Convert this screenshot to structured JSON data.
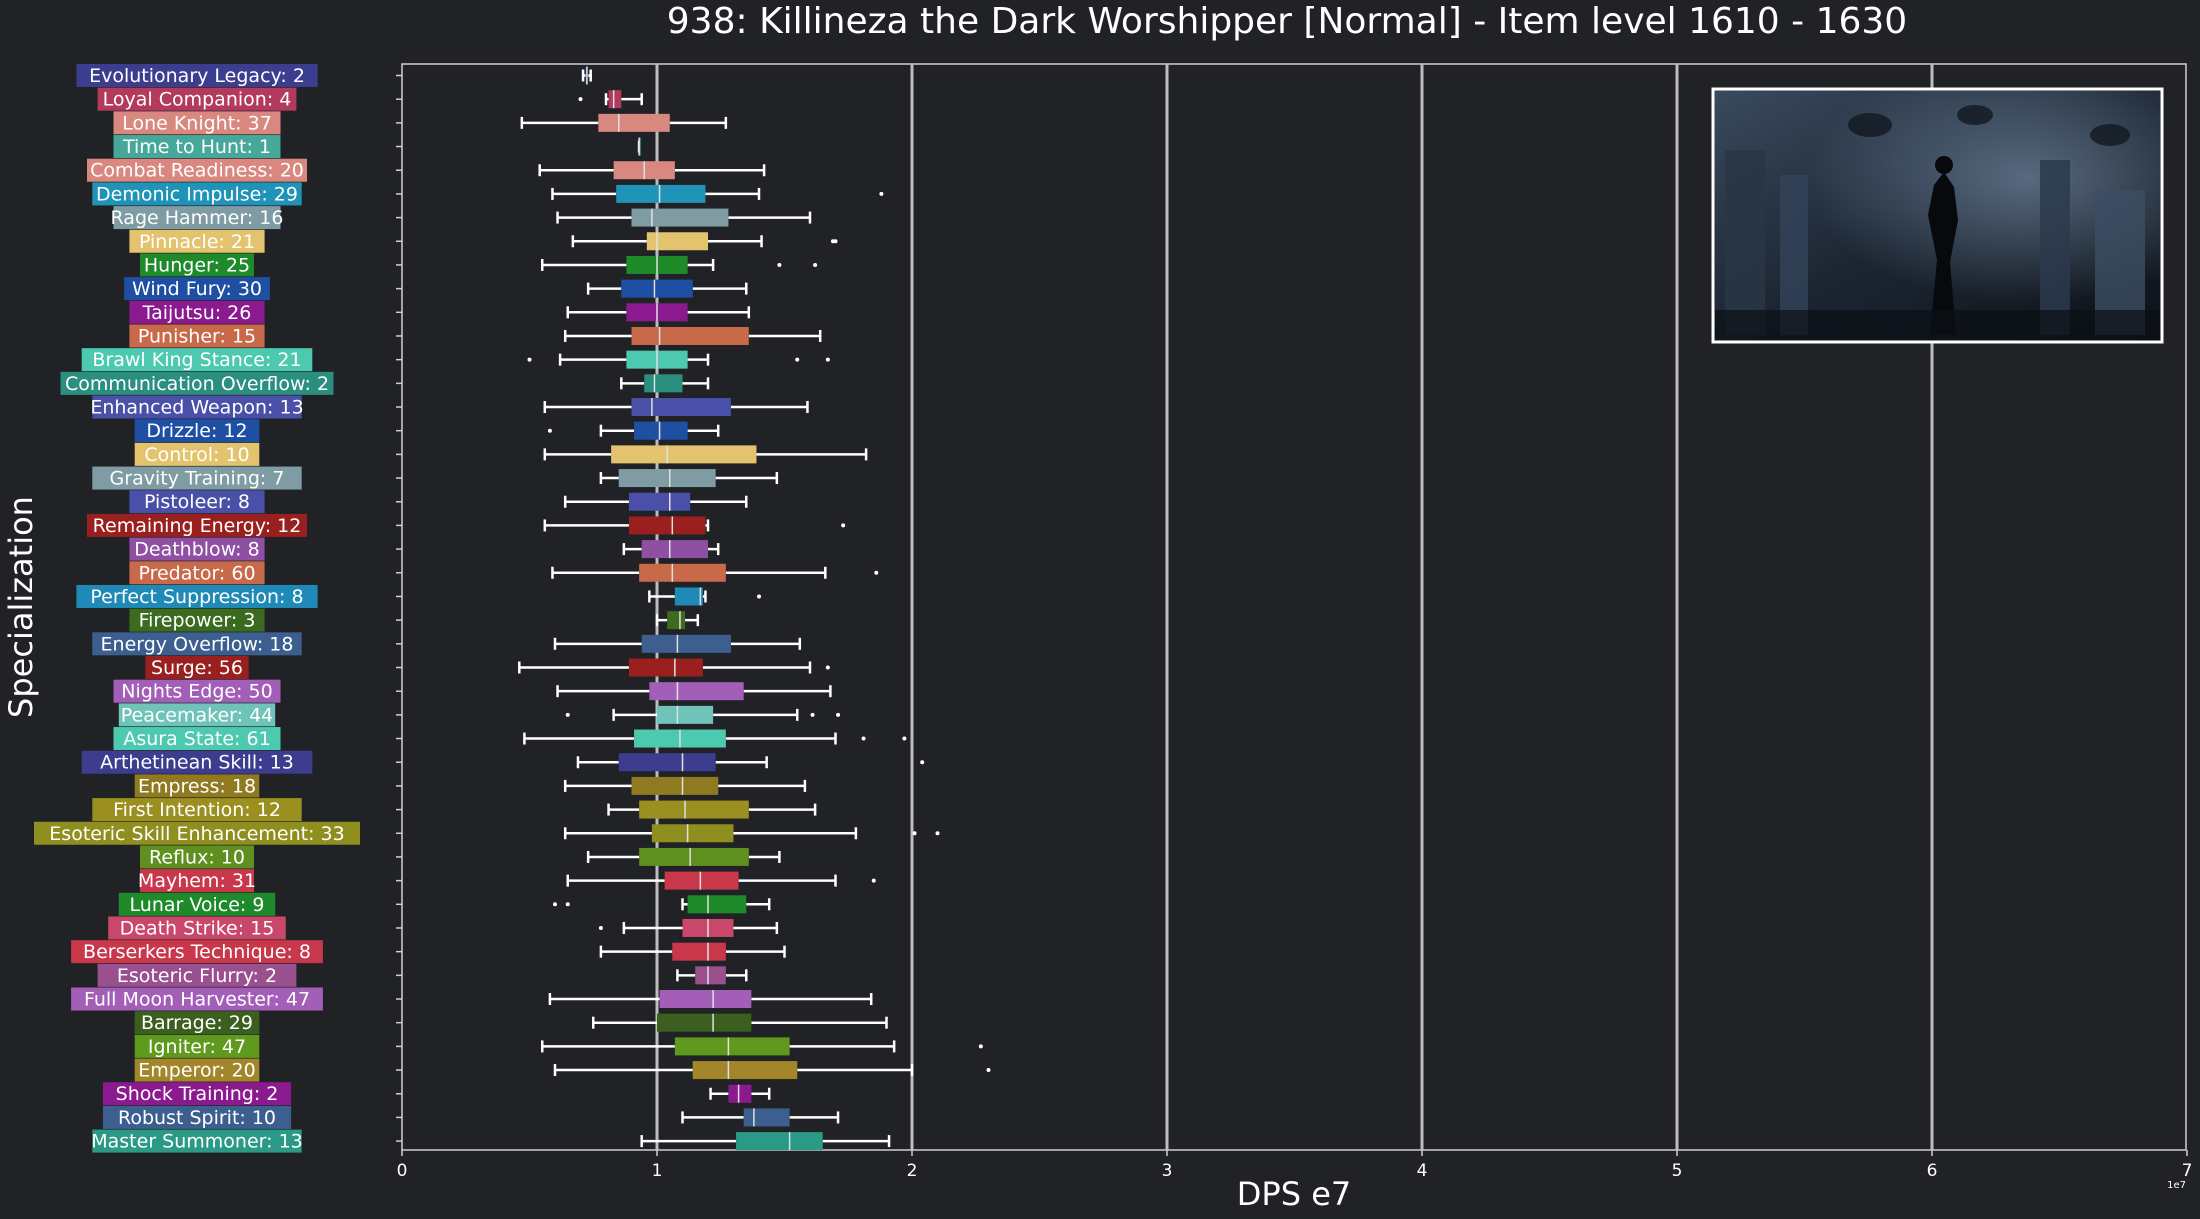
{
  "chart_data": {
    "type": "box",
    "title": "938: Killineza the Dark Worshipper [Normal] - Item level 1610 - 1630",
    "xlabel": "DPS e7",
    "ylabel": "Specialization",
    "offset_text": "1e7",
    "xlim": [
      0,
      7
    ],
    "xticks": [
      "0",
      "1",
      "2",
      "3",
      "4",
      "5",
      "6",
      "7"
    ],
    "grid": "vertical",
    "inset": "boss artwork (dark gothic scene)",
    "categories": [
      {
        "label": "Evolutionary Legacy: 2",
        "color": "#3b3d8f",
        "whislo": 0.71,
        "q1": 0.72,
        "med": 0.725,
        "q3": 0.73,
        "whishi": 0.74,
        "fliers": []
      },
      {
        "label": "Loyal Companion: 4",
        "color": "#b33a5c",
        "whislo": 0.8,
        "q1": 0.81,
        "med": 0.83,
        "q3": 0.86,
        "whishi": 0.94,
        "fliers": [
          0.7
        ]
      },
      {
        "label": "Lone Knight: 37",
        "color": "#d98880",
        "whislo": 0.47,
        "q1": 0.77,
        "med": 0.85,
        "q3": 1.05,
        "whishi": 1.27,
        "fliers": []
      },
      {
        "label": "Time to Hunt: 1",
        "color": "#45a89a",
        "whislo": 0.93,
        "q1": 0.93,
        "med": 0.93,
        "q3": 0.93,
        "whishi": 0.93,
        "fliers": []
      },
      {
        "label": "Combat Readiness: 20",
        "color": "#d98880",
        "whislo": 0.54,
        "q1": 0.83,
        "med": 0.95,
        "q3": 1.07,
        "whishi": 1.42,
        "fliers": []
      },
      {
        "label": "Demonic Impulse: 29",
        "color": "#1f93b8",
        "whislo": 0.59,
        "q1": 0.84,
        "med": 1.01,
        "q3": 1.19,
        "whishi": 1.4,
        "fliers": [
          1.88
        ]
      },
      {
        "label": "Rage Hammer: 16",
        "color": "#7f9ba3",
        "whislo": 0.61,
        "q1": 0.9,
        "med": 0.98,
        "q3": 1.28,
        "whishi": 1.6,
        "fliers": []
      },
      {
        "label": "Pinnacle: 21",
        "color": "#e3c36e",
        "whislo": 0.67,
        "q1": 0.96,
        "med": 1.0,
        "q3": 1.2,
        "whishi": 1.41,
        "fliers": [
          1.69,
          1.7
        ]
      },
      {
        "label": "Hunger: 25",
        "color": "#1e8a2a",
        "whislo": 0.55,
        "q1": 0.88,
        "med": 1.0,
        "q3": 1.12,
        "whishi": 1.22,
        "fliers": [
          1.48,
          1.62
        ]
      },
      {
        "label": "Wind Fury: 30",
        "color": "#1f4fa3",
        "whislo": 0.73,
        "q1": 0.86,
        "med": 0.99,
        "q3": 1.14,
        "whishi": 1.35,
        "fliers": []
      },
      {
        "label": "Taijutsu: 26",
        "color": "#8b1a8f",
        "whislo": 0.65,
        "q1": 0.88,
        "med": 1.0,
        "q3": 1.12,
        "whishi": 1.36,
        "fliers": []
      },
      {
        "label": "Punisher: 15",
        "color": "#c8694a",
        "whislo": 0.64,
        "q1": 0.9,
        "med": 1.01,
        "q3": 1.36,
        "whishi": 1.64,
        "fliers": []
      },
      {
        "label": "Brawl King Stance: 21",
        "color": "#4dc9b0",
        "whislo": 0.62,
        "q1": 0.88,
        "med": 1.0,
        "q3": 1.12,
        "whishi": 1.2,
        "fliers": [
          0.5,
          1.55,
          1.67
        ]
      },
      {
        "label": "Communication Overflow: 2",
        "color": "#2a8f7e",
        "whislo": 0.86,
        "q1": 0.95,
        "med": 0.99,
        "q3": 1.1,
        "whishi": 1.2,
        "fliers": []
      },
      {
        "label": "Enhanced Weapon: 13",
        "color": "#4a4fa8",
        "whislo": 0.56,
        "q1": 0.9,
        "med": 0.98,
        "q3": 1.29,
        "whishi": 1.59,
        "fliers": []
      },
      {
        "label": "Drizzle: 12",
        "color": "#1f4fa3",
        "whislo": 0.78,
        "q1": 0.91,
        "med": 1.01,
        "q3": 1.12,
        "whishi": 1.24,
        "fliers": [
          0.58
        ]
      },
      {
        "label": "Control: 10",
        "color": "#e3c36e",
        "whislo": 0.56,
        "q1": 0.82,
        "med": 1.04,
        "q3": 1.39,
        "whishi": 1.82,
        "fliers": []
      },
      {
        "label": "Gravity Training: 7",
        "color": "#7f9ba3",
        "whislo": 0.78,
        "q1": 0.85,
        "med": 1.05,
        "q3": 1.23,
        "whishi": 1.47,
        "fliers": []
      },
      {
        "label": "Pistoleer: 8",
        "color": "#4a4fa8",
        "whislo": 0.64,
        "q1": 0.89,
        "med": 1.05,
        "q3": 1.13,
        "whishi": 1.35,
        "fliers": []
      },
      {
        "label": "Remaining Energy: 12",
        "color": "#9a1f1f",
        "whislo": 0.56,
        "q1": 0.89,
        "med": 1.06,
        "q3": 1.19,
        "whishi": 1.2,
        "fliers": [
          1.73
        ]
      },
      {
        "label": "Deathblow: 8",
        "color": "#8f4fa3",
        "whislo": 0.87,
        "q1": 0.94,
        "med": 1.05,
        "q3": 1.2,
        "whishi": 1.24,
        "fliers": []
      },
      {
        "label": "Predator: 60",
        "color": "#c8694a",
        "whislo": 0.59,
        "q1": 0.93,
        "med": 1.06,
        "q3": 1.27,
        "whishi": 1.66,
        "fliers": [
          1.86
        ]
      },
      {
        "label": "Perfect Suppression: 8",
        "color": "#1f8ab8",
        "whislo": 0.97,
        "q1": 1.07,
        "med": 1.17,
        "q3": 1.18,
        "whishi": 1.19,
        "fliers": [
          1.4
        ]
      },
      {
        "label": "Firepower: 3",
        "color": "#3b6b1f",
        "whislo": 1.0,
        "q1": 1.04,
        "med": 1.09,
        "q3": 1.11,
        "whishi": 1.16,
        "fliers": []
      },
      {
        "label": "Energy Overflow: 18",
        "color": "#3d5f8f",
        "whislo": 0.6,
        "q1": 0.94,
        "med": 1.08,
        "q3": 1.29,
        "whishi": 1.56,
        "fliers": []
      },
      {
        "label": "Surge: 56",
        "color": "#9a1f1f",
        "whislo": 0.46,
        "q1": 0.89,
        "med": 1.07,
        "q3": 1.18,
        "whishi": 1.6,
        "fliers": [
          1.67
        ]
      },
      {
        "label": "Nights Edge: 50",
        "color": "#a35fb8",
        "whislo": 0.61,
        "q1": 0.97,
        "med": 1.08,
        "q3": 1.34,
        "whishi": 1.68,
        "fliers": []
      },
      {
        "label": "Peacemaker: 44",
        "color": "#6fc3b8",
        "whislo": 0.83,
        "q1": 1.0,
        "med": 1.08,
        "q3": 1.22,
        "whishi": 1.55,
        "fliers": [
          0.65,
          1.61,
          1.71
        ]
      },
      {
        "label": "Asura State: 61",
        "color": "#4dc9b0",
        "whislo": 0.48,
        "q1": 0.91,
        "med": 1.09,
        "q3": 1.27,
        "whishi": 1.7,
        "fliers": [
          1.81,
          1.97
        ]
      },
      {
        "label": "Arthetinean Skill: 13",
        "color": "#3d3d8f",
        "whislo": 0.69,
        "q1": 0.85,
        "med": 1.1,
        "q3": 1.23,
        "whishi": 1.43,
        "fliers": [
          2.04
        ]
      },
      {
        "label": "Empress: 18",
        "color": "#8f7a1f",
        "whislo": 0.64,
        "q1": 0.9,
        "med": 1.1,
        "q3": 1.24,
        "whishi": 1.58,
        "fliers": []
      },
      {
        "label": "First Intention: 12",
        "color": "#9a8f1f",
        "whislo": 0.81,
        "q1": 0.93,
        "med": 1.11,
        "q3": 1.36,
        "whishi": 1.62,
        "fliers": []
      },
      {
        "label": "Esoteric Skill Enhancement: 33",
        "color": "#8f8f1f",
        "whislo": 0.64,
        "q1": 0.98,
        "med": 1.12,
        "q3": 1.3,
        "whishi": 1.78,
        "fliers": [
          2.01,
          2.1
        ]
      },
      {
        "label": "Reflux: 10",
        "color": "#5f8f1f",
        "whislo": 0.73,
        "q1": 0.93,
        "med": 1.13,
        "q3": 1.36,
        "whishi": 1.48,
        "fliers": []
      },
      {
        "label": "Mayhem: 31",
        "color": "#c8374a",
        "whislo": 0.65,
        "q1": 1.03,
        "med": 1.17,
        "q3": 1.32,
        "whishi": 1.7,
        "fliers": [
          1.85
        ]
      },
      {
        "label": "Lunar Voice: 9",
        "color": "#1e8a2a",
        "whislo": 1.1,
        "q1": 1.12,
        "med": 1.2,
        "q3": 1.35,
        "whishi": 1.44,
        "fliers": [
          0.6,
          0.65
        ]
      },
      {
        "label": "Death Strike: 15",
        "color": "#c8476a",
        "whislo": 0.87,
        "q1": 1.1,
        "med": 1.2,
        "q3": 1.3,
        "whishi": 1.47,
        "fliers": [
          0.78
        ]
      },
      {
        "label": "Berserkers Technique: 8",
        "color": "#c8374a",
        "whislo": 0.78,
        "q1": 1.06,
        "med": 1.2,
        "q3": 1.27,
        "whishi": 1.5,
        "fliers": []
      },
      {
        "label": "Esoteric Flurry: 2",
        "color": "#9a4f8f",
        "whislo": 1.08,
        "q1": 1.15,
        "med": 1.2,
        "q3": 1.27,
        "whishi": 1.35,
        "fliers": []
      },
      {
        "label": "Full Moon Harvester: 47",
        "color": "#a35fb8",
        "whislo": 0.58,
        "q1": 1.01,
        "med": 1.22,
        "q3": 1.37,
        "whishi": 1.84,
        "fliers": []
      },
      {
        "label": "Barrage: 29",
        "color": "#3b5f1f",
        "whislo": 0.75,
        "q1": 1.0,
        "med": 1.22,
        "q3": 1.37,
        "whishi": 1.9,
        "fliers": []
      },
      {
        "label": "Igniter: 47",
        "color": "#5f9a1f",
        "whislo": 0.55,
        "q1": 1.07,
        "med": 1.28,
        "q3": 1.52,
        "whishi": 1.93,
        "fliers": [
          2.27
        ]
      },
      {
        "label": "Emperor: 20",
        "color": "#a3862a",
        "whislo": 0.6,
        "q1": 1.14,
        "med": 1.28,
        "q3": 1.55,
        "whishi": 2.0,
        "fliers": [
          2.3
        ]
      },
      {
        "label": "Shock Training: 2",
        "color": "#8b1a8f",
        "whislo": 1.21,
        "q1": 1.28,
        "med": 1.32,
        "q3": 1.37,
        "whishi": 1.44,
        "fliers": []
      },
      {
        "label": "Robust Spirit: 10",
        "color": "#3d5f8f",
        "whislo": 1.1,
        "q1": 1.34,
        "med": 1.38,
        "q3": 1.52,
        "whishi": 1.71,
        "fliers": []
      },
      {
        "label": "Master Summoner: 13",
        "color": "#2a9a86",
        "whislo": 0.94,
        "q1": 1.31,
        "med": 1.52,
        "q3": 1.65,
        "whishi": 1.91,
        "fliers": []
      }
    ]
  }
}
